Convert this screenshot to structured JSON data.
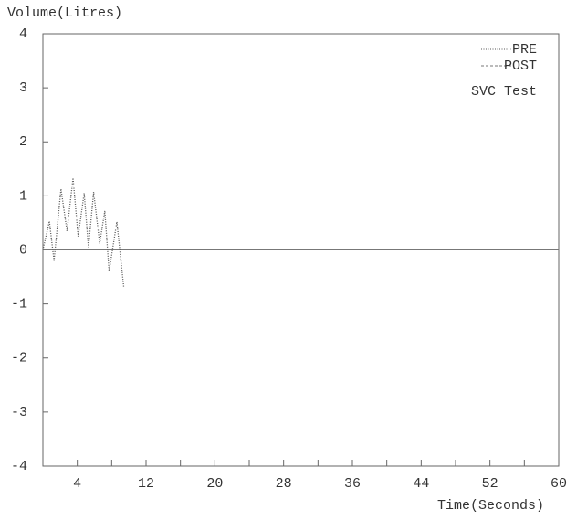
{
  "chart_data": {
    "type": "line",
    "ylabel": "Volume(Litres)",
    "xlabel": "Time(Seconds)",
    "annotation": "SVC Test",
    "x": [
      0,
      0.75,
      1.3,
      2.1,
      2.8,
      3.5,
      4.1,
      4.8,
      5.3,
      5.9,
      6.6,
      7.2,
      7.7,
      8.6,
      9.4
    ],
    "series": [
      {
        "name": "PRE",
        "color": "#555555",
        "dash": "1,1.5",
        "values": [
          0,
          0.53,
          -0.2,
          1.13,
          0.35,
          1.33,
          0.25,
          1.05,
          0.05,
          1.07,
          0.12,
          0.72,
          -0.4,
          0.52,
          -0.68
        ]
      },
      {
        "name": "POST",
        "color": "#777777",
        "dash": "3,2",
        "values": [
          null,
          null,
          null,
          null,
          null,
          null,
          null,
          null,
          null,
          null,
          null,
          null,
          null,
          null,
          null
        ]
      }
    ],
    "xlim": [
      0,
      60
    ],
    "xticks": [
      4,
      12,
      20,
      28,
      36,
      44,
      52,
      60
    ],
    "xminorticks": [
      8,
      16,
      24,
      32,
      40,
      48,
      56
    ],
    "ylim": [
      -4,
      4
    ],
    "yticks": [
      -4,
      -3,
      -2,
      -1,
      0,
      1,
      2,
      3,
      4
    ],
    "zero_line": true,
    "legend": "upper right"
  }
}
